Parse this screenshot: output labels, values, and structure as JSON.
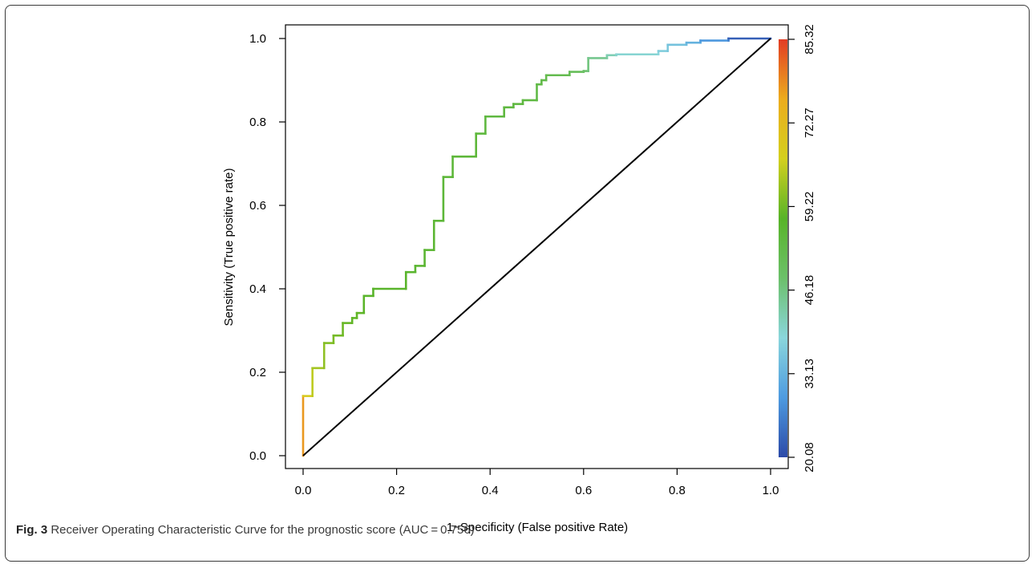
{
  "chart_data": {
    "type": "line",
    "xlabel": "1−Specificity (False positive Rate)",
    "ylabel": "Sensitivity (True positive rate)",
    "xlim": [
      0,
      1
    ],
    "ylim": [
      0,
      1
    ],
    "x_ticks": [
      "0.0",
      "0.2",
      "0.4",
      "0.6",
      "0.8",
      "1.0"
    ],
    "y_ticks": [
      "0.0",
      "0.2",
      "0.4",
      "0.6",
      "0.8",
      "1.0"
    ],
    "colorbar": {
      "range": [
        20.08,
        85.32
      ],
      "tick_labels": [
        "20.08",
        "33.13",
        "46.18",
        "59.22",
        "72.27",
        "85.32"
      ],
      "colors": [
        "#2c4aa8",
        "#4e9be0",
        "#8ad6dc",
        "#6cc06a",
        "#58b428",
        "#d4d01e",
        "#ecac1e",
        "#e23c24"
      ]
    },
    "series": [
      {
        "type": "roc-step",
        "x": [
          0,
          0,
          0.02,
          0.02,
          0.045,
          0.045,
          0.065,
          0.065,
          0.085,
          0.085,
          0.105,
          0.105,
          0.115,
          0.115,
          0.13,
          0.13,
          0.15,
          0.15,
          0.22,
          0.22,
          0.24,
          0.24,
          0.26,
          0.26,
          0.28,
          0.28,
          0.3,
          0.3,
          0.32,
          0.32,
          0.37,
          0.37,
          0.39,
          0.39,
          0.43,
          0.43,
          0.45,
          0.45,
          0.47,
          0.47,
          0.5,
          0.5,
          0.51,
          0.51,
          0.52,
          0.52,
          0.57,
          0.57,
          0.6,
          0.6,
          0.61,
          0.61,
          0.65,
          0.65,
          0.67,
          0.67,
          0.76,
          0.76,
          0.78,
          0.78,
          0.82,
          0.82,
          0.85,
          0.85,
          0.91,
          0.91,
          1
        ],
        "y": [
          0,
          0.143,
          0.143,
          0.21,
          0.21,
          0.27,
          0.27,
          0.288,
          0.288,
          0.318,
          0.318,
          0.33,
          0.33,
          0.342,
          0.342,
          0.383,
          0.383,
          0.4,
          0.4,
          0.44,
          0.44,
          0.455,
          0.455,
          0.493,
          0.493,
          0.563,
          0.563,
          0.668,
          0.668,
          0.717,
          0.717,
          0.772,
          0.772,
          0.813,
          0.813,
          0.835,
          0.835,
          0.843,
          0.843,
          0.852,
          0.852,
          0.89,
          0.89,
          0.9,
          0.9,
          0.912,
          0.912,
          0.92,
          0.92,
          0.922,
          0.922,
          0.953,
          0.953,
          0.96,
          0.96,
          0.962,
          0.962,
          0.97,
          0.97,
          0.985,
          0.985,
          0.99,
          0.99,
          0.995,
          0.995,
          1.0,
          1.0
        ],
        "threshold": [
          85.32,
          70,
          66,
          64,
          62,
          61,
          60,
          60,
          59,
          59,
          58,
          58,
          58,
          58,
          58,
          57,
          57,
          57,
          57,
          57,
          56,
          56,
          56,
          56,
          56,
          56,
          55,
          55,
          55,
          55,
          55,
          55,
          54,
          54,
          54,
          54,
          54,
          54,
          54,
          54,
          53,
          53,
          53,
          53,
          52,
          52,
          52,
          51,
          50,
          49,
          47,
          46,
          44,
          43,
          41,
          40,
          39,
          38,
          37,
          36,
          35,
          34,
          32,
          30,
          28,
          25,
          20.08
        ]
      },
      {
        "type": "diagonal",
        "x": [
          0,
          1
        ],
        "y": [
          0,
          1
        ]
      }
    ]
  },
  "caption": {
    "label": "Fig. 3",
    "text": " Receiver Operating Characteristic Curve for the prognostic score (AUC = 0.756)"
  }
}
